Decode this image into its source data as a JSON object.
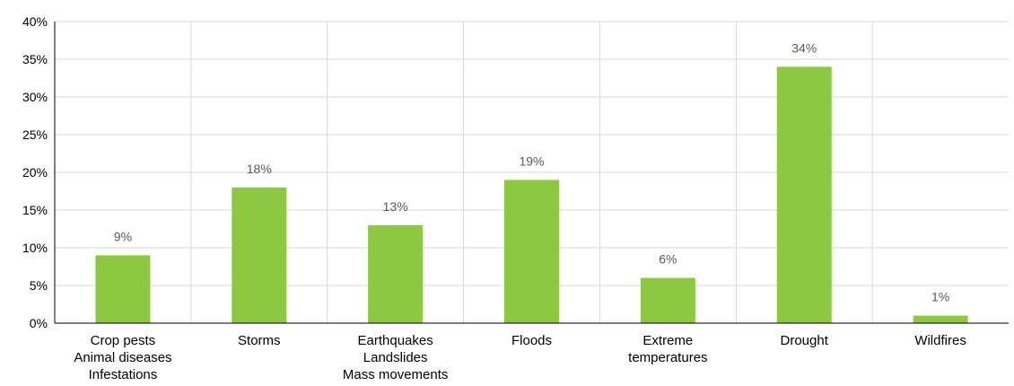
{
  "chart_data": {
    "type": "bar",
    "categories": [
      [
        "Crop pests",
        "Animal diseases",
        "Infestations"
      ],
      [
        "Storms"
      ],
      [
        "Earthquakes",
        "Landslides",
        "Mass movements"
      ],
      [
        "Floods"
      ],
      [
        "Extreme",
        "temperatures"
      ],
      [
        "Drought"
      ],
      [
        "Wildfires"
      ]
    ],
    "values": [
      9,
      18,
      13,
      19,
      6,
      34,
      1
    ],
    "data_labels": [
      "9%",
      "18%",
      "13%",
      "19%",
      "6%",
      "34%",
      "1%"
    ],
    "y_ticks": [
      "0%",
      "5%",
      "10%",
      "15%",
      "20%",
      "25%",
      "30%",
      "35%",
      "40%"
    ],
    "ylim": [
      0,
      40
    ],
    "y_step": 5,
    "grid": true,
    "title": "",
    "xlabel": "",
    "ylabel": "",
    "colors": {
      "bar": "#8cc841",
      "grid": "#d9d9d9",
      "axis": "#000000",
      "data_label": "#595959"
    }
  }
}
